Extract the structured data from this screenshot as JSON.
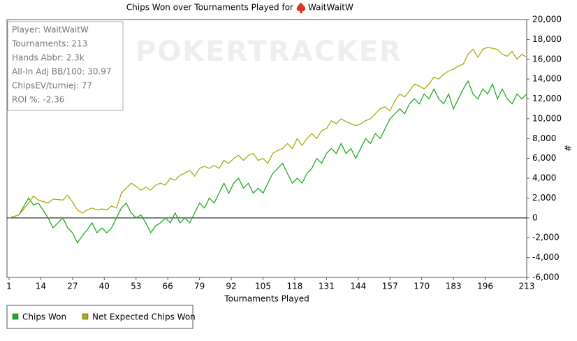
{
  "chart_data": {
    "type": "line",
    "title": "Chips Won over Tournaments Played for",
    "player": "WaitWaitW",
    "watermark": "POKERTRACKER",
    "info": [
      "Player: WaitWaitW",
      "Tournaments: 213",
      "Hands Abbr: 2.3k",
      "All-In Adj BB/100: 30.97",
      "ChipsEV/turniej: 77",
      "ROI %: -2.36"
    ],
    "x_label": "Tournaments Played",
    "y_label": "#",
    "xlim": [
      1,
      213
    ],
    "xticks": [
      1,
      14,
      27,
      40,
      53,
      66,
      79,
      92,
      105,
      118,
      131,
      144,
      157,
      170,
      183,
      196,
      213
    ],
    "ylim": [
      -6000,
      20000
    ],
    "yticks": [
      {
        "value": -6000,
        "label": "-6,000"
      },
      {
        "value": -4000,
        "label": "-4,000"
      },
      {
        "value": -2000,
        "label": "-2,000"
      },
      0,
      {
        "value": 2000,
        "label": "2,000"
      },
      {
        "value": 4000,
        "label": "4,000"
      },
      {
        "value": 6000,
        "label": "6,000"
      },
      {
        "value": 8000,
        "label": "8,000"
      },
      {
        "value": 10000,
        "label": "10,000"
      },
      {
        "value": 12000,
        "label": "12,000"
      },
      {
        "value": 14000,
        "label": "14,000"
      },
      {
        "value": 16000,
        "label": "16,000"
      },
      {
        "value": 18000,
        "label": "18,000"
      },
      {
        "value": 20000,
        "label": "20,000"
      }
    ],
    "x": [
      1,
      5,
      9,
      11,
      13,
      17,
      19,
      23,
      25,
      27,
      29,
      31,
      33,
      35,
      37,
      39,
      41,
      43,
      45,
      47,
      49,
      51,
      53,
      55,
      57,
      59,
      61,
      63,
      65,
      67,
      69,
      71,
      73,
      75,
      77,
      79,
      81,
      83,
      85,
      87,
      89,
      91,
      93,
      95,
      97,
      99,
      101,
      103,
      105,
      107,
      109,
      111,
      113,
      115,
      117,
      119,
      121,
      123,
      125,
      127,
      129,
      131,
      133,
      135,
      137,
      139,
      141,
      143,
      145,
      147,
      149,
      151,
      153,
      155,
      157,
      159,
      161,
      163,
      165,
      167,
      169,
      171,
      173,
      175,
      177,
      179,
      181,
      183,
      185,
      187,
      189,
      191,
      193,
      195,
      197,
      199,
      201,
      203,
      205,
      207,
      209,
      211,
      213
    ],
    "series": [
      {
        "name": "Chips Won",
        "color": "#22aa22",
        "values": [
          0,
          300,
          2000,
          1300,
          1500,
          0,
          -1000,
          0,
          -1000,
          -1500,
          -2500,
          -1800,
          -1200,
          -500,
          -1500,
          -1000,
          -1500,
          -1000,
          0,
          1000,
          1500,
          500,
          0,
          300,
          -500,
          -1500,
          -800,
          -500,
          0,
          -500,
          500,
          -500,
          0,
          -500,
          500,
          1500,
          1000,
          2000,
          1500,
          2500,
          3500,
          2500,
          3500,
          4000,
          3000,
          3500,
          2500,
          3000,
          2500,
          3500,
          4500,
          5000,
          5500,
          4500,
          3500,
          4000,
          3500,
          4500,
          5000,
          6000,
          5500,
          6500,
          7000,
          6500,
          7500,
          6500,
          7000,
          6000,
          7000,
          8000,
          7500,
          8500,
          8000,
          9000,
          10000,
          10500,
          11000,
          10500,
          11500,
          12000,
          11500,
          12500,
          12000,
          13000,
          12000,
          11500,
          12500,
          11000,
          12000,
          13000,
          13800,
          12500,
          12000,
          13000,
          12500,
          13500,
          12000,
          13000,
          12000,
          11500,
          12500,
          12000,
          12500
        ]
      },
      {
        "name": "Net Expected Chips Won",
        "color": "#aaaa11",
        "values": [
          0,
          300,
          1500,
          2200,
          1800,
          1500,
          1900,
          1800,
          2300,
          1600,
          800,
          500,
          800,
          1000,
          800,
          900,
          800,
          1200,
          1000,
          2500,
          3000,
          3500,
          3200,
          2800,
          3100,
          2800,
          3300,
          3500,
          3300,
          4000,
          3800,
          4300,
          4500,
          4800,
          4200,
          5000,
          5200,
          5000,
          5300,
          5000,
          5800,
          5500,
          6000,
          6300,
          5800,
          6300,
          6500,
          5800,
          6000,
          5500,
          6500,
          6800,
          7000,
          7500,
          7000,
          8000,
          7300,
          8000,
          8500,
          8000,
          8800,
          9000,
          9800,
          9500,
          10000,
          9700,
          9500,
          9300,
          9500,
          9800,
          10000,
          10500,
          11000,
          11200,
          10800,
          11800,
          12500,
          12200,
          12800,
          13500,
          13300,
          13000,
          13500,
          14200,
          14000,
          14500,
          14800,
          15000,
          15300,
          15500,
          16500,
          17000,
          16200,
          17000,
          17200,
          17100,
          17000,
          16500,
          16300,
          16800,
          16000,
          16500,
          16200
        ]
      }
    ]
  }
}
